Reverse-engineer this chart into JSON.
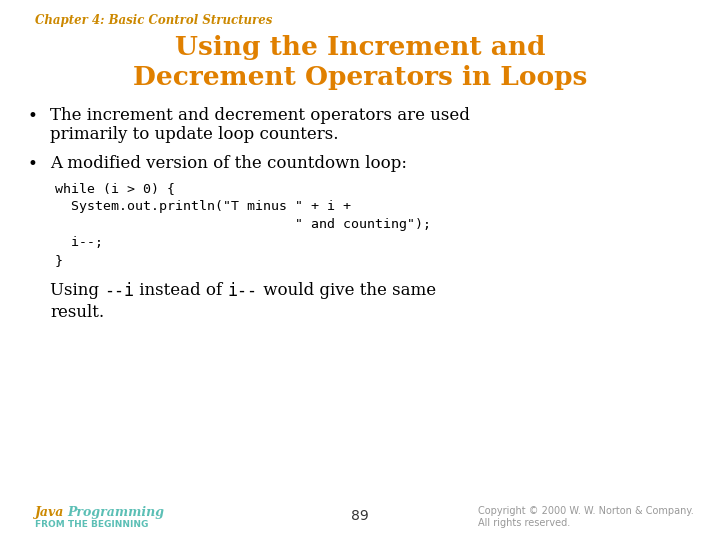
{
  "bg_color": "#ffffff",
  "chapter_label": "Chapter 4: Basic Control Structures",
  "chapter_color": "#cc8800",
  "title_line1": "Using the Increment and",
  "title_line2": "Decrement Operators in Loops",
  "title_color": "#e08000",
  "bullet1_line1": "The increment and decrement operators are used",
  "bullet1_line2": "primarily to update loop counters.",
  "bullet2": "A modified version of the countdown loop:",
  "bullet_color": "#000000",
  "code_line1": "while (i > 0) {",
  "code_line2": "  System.out.println(\"T minus \" + i +",
  "code_line3": "                              \" and counting\");",
  "code_line4": "  i--;",
  "code_line5": "}",
  "code_color": "#000000",
  "note_pre1": "Using ",
  "note_code1": "--i",
  "note_mid": " instead of ",
  "note_code2": "i--",
  "note_post": " would give the same",
  "note_line2": "result.",
  "footer_java": "Java",
  "footer_programming": " Programming",
  "footer_from": "FROM THE BEGINNING",
  "footer_java_color": "#cc8800",
  "footer_prog_color": "#5bbfb5",
  "footer_from_color": "#5bbfb5",
  "footer_page": "89",
  "footer_copyright": "Copyright © 2000 W. W. Norton & Company.",
  "footer_rights": "All rights reserved.",
  "footer_color": "#999999"
}
